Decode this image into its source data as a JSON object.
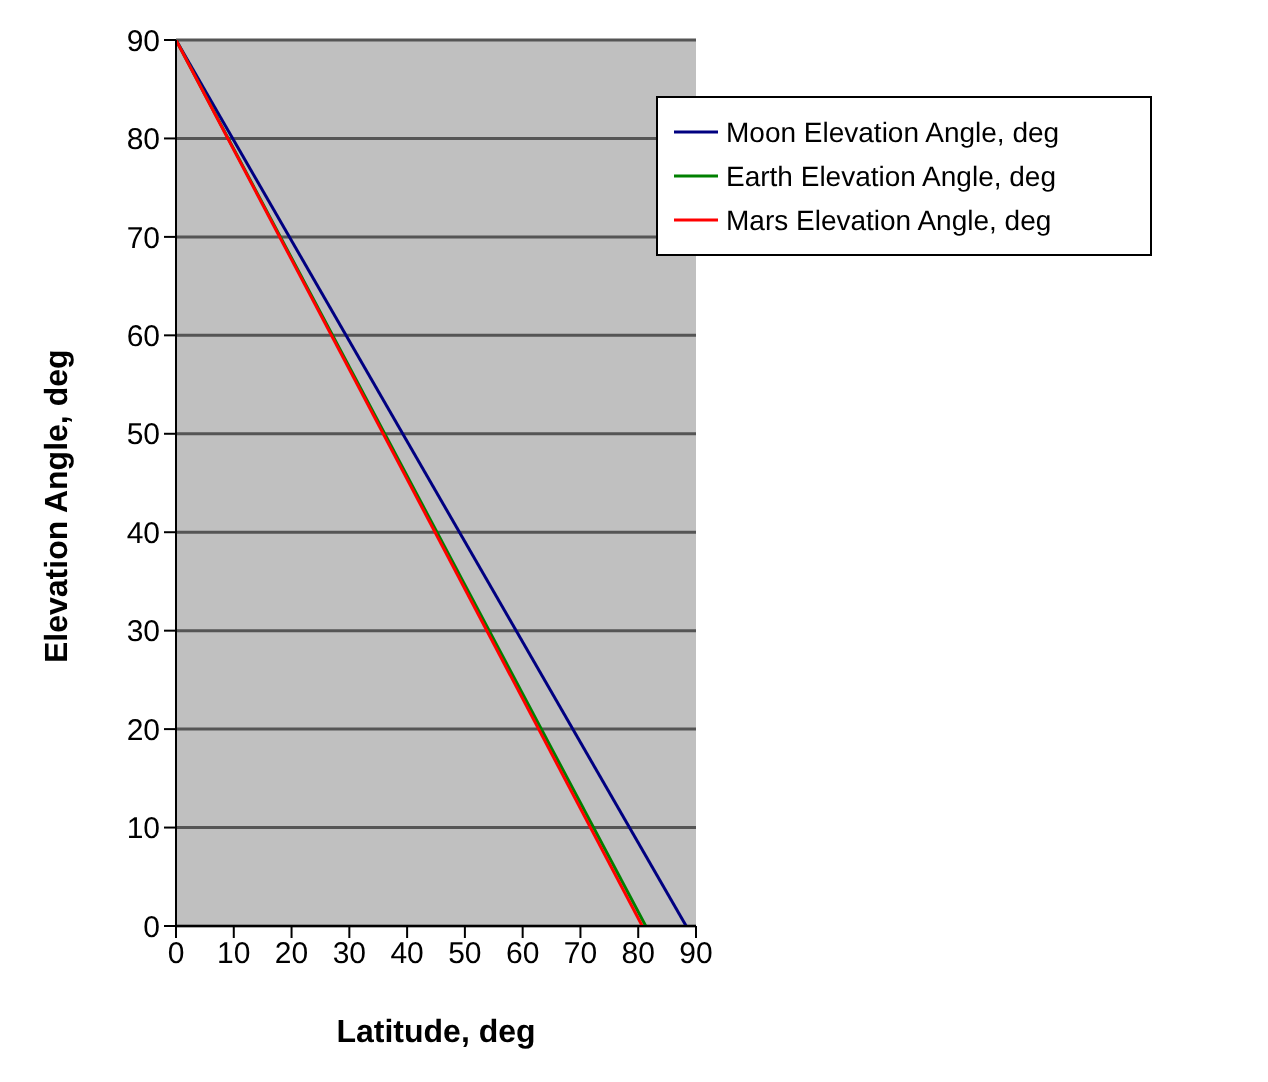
{
  "chart_data": {
    "type": "line",
    "xlabel": "Latitude, deg",
    "ylabel": "Elevation Angle, deg",
    "xlim": [
      0,
      90
    ],
    "xticks": [
      0,
      10,
      20,
      30,
      40,
      50,
      60,
      70,
      80,
      90
    ],
    "ylim": [
      0,
      90
    ],
    "yticks": [
      0,
      10,
      20,
      30,
      40,
      50,
      60,
      70,
      80,
      90
    ],
    "grid": "y",
    "legend": "top right",
    "marker": "none",
    "line_style": "solid",
    "series": [
      {
        "name": "Moon Elevation Angle, deg",
        "color": "#000080",
        "x": [
          0,
          88.3
        ],
        "values": [
          90,
          0
        ]
      },
      {
        "name": "Earth Elevation Angle, deg",
        "color": "#008000",
        "x": [
          0,
          81.3
        ],
        "values": [
          90,
          0
        ]
      },
      {
        "name": "Mars Elevation Angle, deg",
        "color": "#ff0000",
        "x": [
          0,
          80.7
        ],
        "values": [
          90,
          0
        ]
      }
    ]
  }
}
